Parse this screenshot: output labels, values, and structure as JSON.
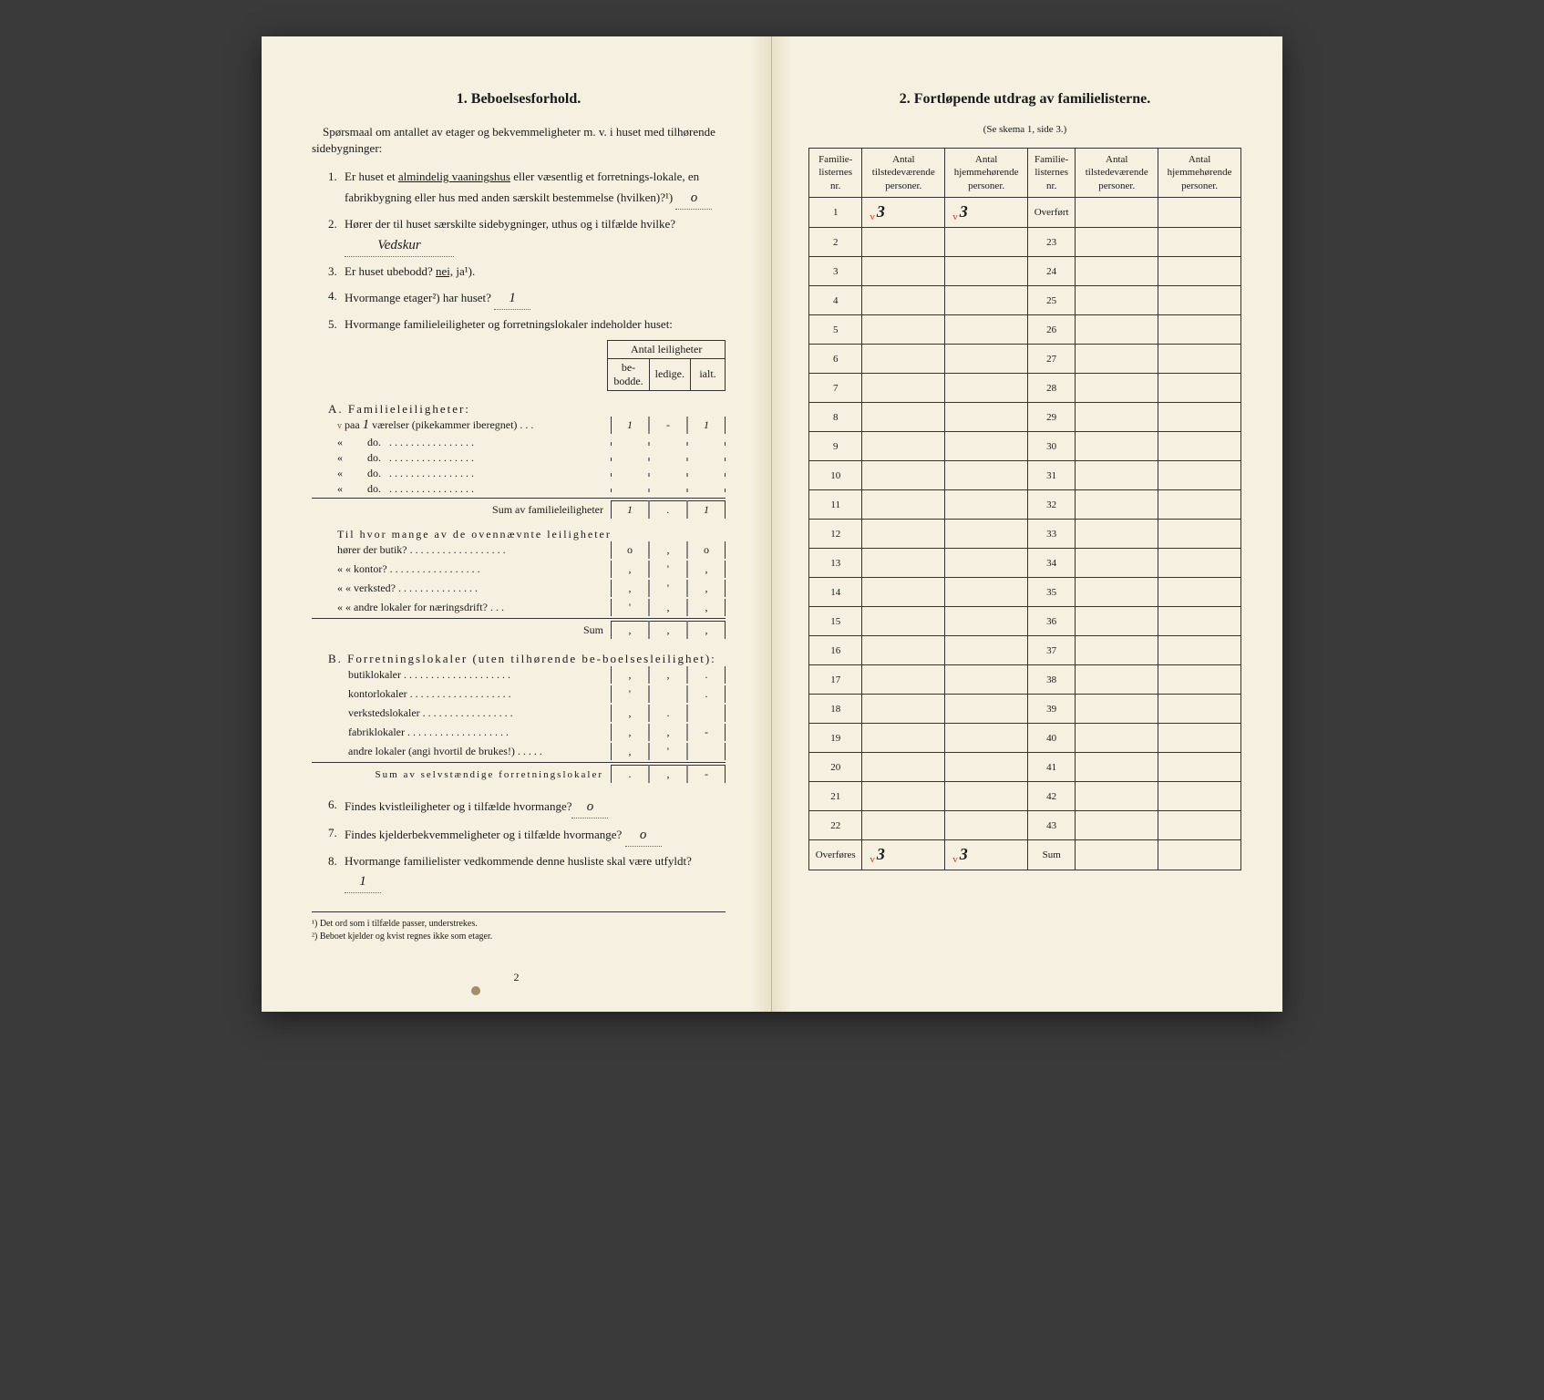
{
  "left": {
    "title": "1.   Beboelsesforhold.",
    "intro": "Spørsmaal om antallet av etager og bekvemmeligheter m. v. i huset med tilhørende sidebygninger:",
    "q1": {
      "num": "1.",
      "text_a": "Er huset et ",
      "u1": "almindelig vaaningshus",
      "text_b": " eller væsentlig et forretnings-lokale, en fabrikbygning eller hus med anden særskilt bestemmelse (hvilken)?¹)",
      "ans": "o"
    },
    "q2": {
      "num": "2.",
      "text": "Hører der til huset særskilte sidebygninger, uthus og i tilfælde hvilke?",
      "ans": "Vedskur"
    },
    "q3": {
      "num": "3.",
      "text": "Er huset ubebodd?",
      "nei": "nei,",
      "ja": "ja¹)."
    },
    "q4": {
      "num": "4.",
      "text": "Hvormange etager²) har huset?",
      "ans": "1"
    },
    "q5": {
      "num": "5.",
      "text": "Hvormange familieleiligheter og forretningslokaler indeholder huset:"
    },
    "leil_header": {
      "top": "Antal leiligheter",
      "c1": "be-\nbodde.",
      "c2": "ledige.",
      "c3": "ialt."
    },
    "sectionA": {
      "heading": "A. Familieleiligheter:",
      "row1_prefix": "paa",
      "row1_val": "1",
      "row1_text": "værelser (pikekammer iberegnet) . . .",
      "do": "do.",
      "cells1": [
        "1",
        "-",
        "1"
      ],
      "sum_label": "Sum av familieleiligheter",
      "sum_cells": [
        "1",
        ".",
        "1"
      ]
    },
    "sectionA_sub": {
      "intro": "Til hvor mange av de ovennævnte leiligheter",
      "rows": [
        {
          "label": "hører der butik? . . . . . . . . . . . . . . . . . .",
          "c": [
            "o",
            ",",
            "o"
          ]
        },
        {
          "label": "«     « kontor? . . . . . . . . . . . . . . . . .",
          "c": [
            ",",
            "'",
            ","
          ]
        },
        {
          "label": "«     « verksted? . . . . . . . . . . . . . . .",
          "c": [
            ",",
            "'",
            ","
          ]
        },
        {
          "label": "«     « andre lokaler for næringsdrift? . . .",
          "c": [
            "'",
            ",",
            ","
          ]
        }
      ],
      "sum": "Sum",
      "sum_cells": [
        ",",
        ",",
        ","
      ]
    },
    "sectionB": {
      "heading": "B. Forretningslokaler (uten tilhørende be-boelsesleilighet):",
      "rows": [
        {
          "label": "butiklokaler . . . . . . . . . . . . . . . . . . . .",
          "c": [
            ",",
            ",",
            "."
          ]
        },
        {
          "label": "kontorlokaler . . . . . . . . . . . . . . . . . . .",
          "c": [
            "'",
            "",
            "."
          ]
        },
        {
          "label": "verkstedslokaler . . . . . . . . . . . . . . . . .",
          "c": [
            ",",
            ".",
            ""
          ]
        },
        {
          "label": "fabriklokaler . . . . . . . . . . . . . . . . . . .",
          "c": [
            ",",
            ",",
            "-"
          ]
        },
        {
          "label": "andre lokaler (angi hvortil de brukes!) . . . . .",
          "c": [
            ",",
            "'",
            ""
          ]
        }
      ],
      "sum": "Sum av selvstændige forretningslokaler",
      "sum_cells": [
        ".",
        ",",
        "-"
      ]
    },
    "q6": {
      "num": "6.",
      "text": "Findes kvistleiligheter og i tilfælde hvormange?",
      "ans": "o"
    },
    "q7": {
      "num": "7.",
      "text": "Findes kjelderbekvemmeligheter og i tilfælde hvormange?",
      "ans": "o"
    },
    "q8": {
      "num": "8.",
      "text": "Hvormange familielister vedkommende denne husliste skal være utfyldt?",
      "ans": "1"
    },
    "footnotes": {
      "f1": "¹) Det ord som i tilfælde passer, understrekes.",
      "f2": "²) Beboet kjelder og kvist regnes ikke som etager."
    },
    "page_num": "2"
  },
  "right": {
    "title": "2.   Fortløpende utdrag av familielisterne.",
    "subtitle": "(Se skema 1, side 3.)",
    "headers": {
      "c1": "Familie-listernes nr.",
      "c2": "Antal tilstedeværende personer.",
      "c3": "Antal hjemmehørende personer.",
      "c4": "Familie-listernes nr.",
      "c5": "Antal tilstedeværende personer.",
      "c6": "Antal hjemmehørende personer."
    },
    "rows_left": [
      "1",
      "2",
      "3",
      "4",
      "5",
      "6",
      "7",
      "8",
      "9",
      "10",
      "11",
      "12",
      "13",
      "14",
      "15",
      "16",
      "17",
      "18",
      "19",
      "20",
      "21",
      "22"
    ],
    "row1_v1": "3",
    "row1_v2": "3",
    "overfort": "Overført",
    "rows_right": [
      "23",
      "24",
      "25",
      "26",
      "27",
      "28",
      "29",
      "30",
      "31",
      "32",
      "33",
      "34",
      "35",
      "36",
      "37",
      "38",
      "39",
      "40",
      "41",
      "42",
      "43"
    ],
    "overfores": "Overføres",
    "ov_v1": "3",
    "ov_v2": "3",
    "sum": "Sum"
  },
  "colors": {
    "page_bg": "#f5f0e0",
    "text": "#1a1a1a",
    "border": "#333333",
    "red": "#c0392b",
    "background": "#3a3a3a"
  }
}
